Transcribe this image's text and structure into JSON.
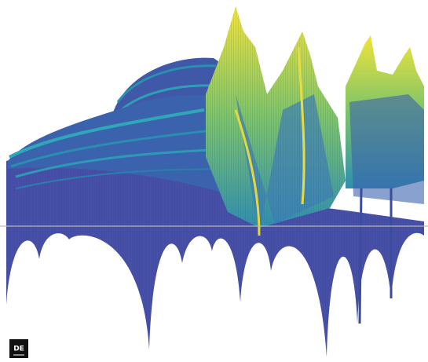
{
  "logo": {
    "text": "DE"
  }
}
